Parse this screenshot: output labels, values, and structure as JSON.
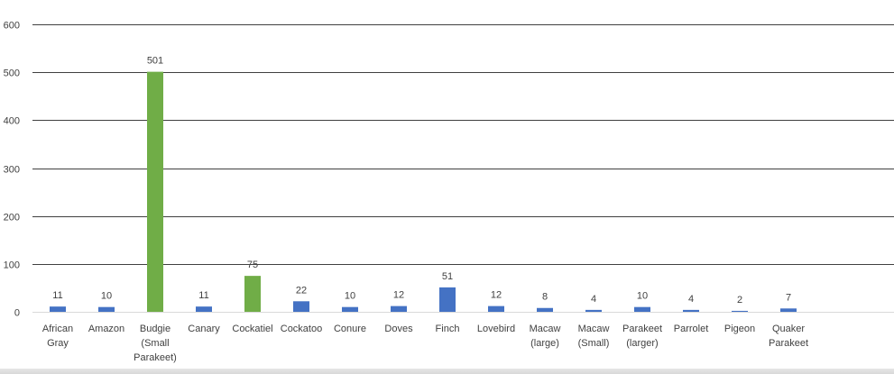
{
  "chart_data": {
    "type": "bar",
    "categories": [
      "African Gray",
      "Amazon",
      "Budgie (Small Parakeet)",
      "Canary",
      "Cockatiel",
      "Cockatoo",
      "Conure",
      "Doves",
      "Finch",
      "Lovebird",
      "Macaw (large)",
      "Macaw (Small)",
      "Parakeet (larger)",
      "Parrolet",
      "Pigeon",
      "Quaker Parakeet"
    ],
    "category_lines": [
      [
        "African",
        "Gray"
      ],
      [
        "Amazon"
      ],
      [
        "Budgie",
        "(Small",
        "Parakeet)"
      ],
      [
        "Canary"
      ],
      [
        "Cockatiel"
      ],
      [
        "Cockatoo"
      ],
      [
        "Conure"
      ],
      [
        "Doves"
      ],
      [
        "Finch"
      ],
      [
        "Lovebird"
      ],
      [
        "Macaw",
        "(large)"
      ],
      [
        "Macaw",
        "(Small)"
      ],
      [
        "Parakeet",
        "(larger)"
      ],
      [
        "Parrolet"
      ],
      [
        "Pigeon"
      ],
      [
        "Quaker",
        "Parakeet"
      ]
    ],
    "values": [
      11,
      10,
      501,
      11,
      75,
      22,
      10,
      12,
      51,
      12,
      8,
      4,
      10,
      4,
      2,
      7
    ],
    "bar_colors": [
      "#4472c4",
      "#4472c4",
      "#70ad47",
      "#4472c4",
      "#70ad47",
      "#4472c4",
      "#4472c4",
      "#4472c4",
      "#4472c4",
      "#4472c4",
      "#4472c4",
      "#4472c4",
      "#4472c4",
      "#4472c4",
      "#4472c4",
      "#4472c4"
    ],
    "yticks": [
      0,
      100,
      200,
      300,
      400,
      500,
      600
    ],
    "ylim": [
      0,
      600
    ],
    "grid": true,
    "data_labels": true,
    "title": "",
    "xlabel": "",
    "ylabel": ""
  }
}
